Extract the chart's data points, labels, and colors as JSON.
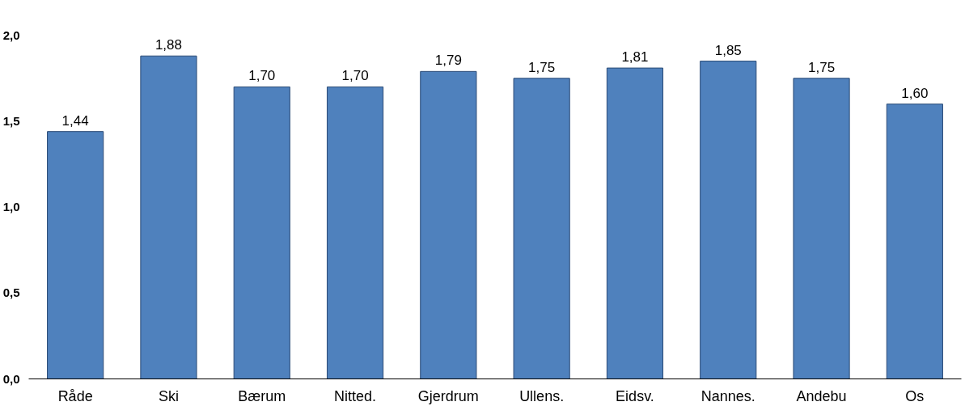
{
  "chart_data": {
    "type": "bar",
    "categories": [
      "Råde",
      "Ski",
      "Bærum",
      "Nitted.",
      "Gjerdrum",
      "Ullens.",
      "Eidsv.",
      "Nannes.",
      "Andebu",
      "Os"
    ],
    "values": [
      1.44,
      1.88,
      1.7,
      1.7,
      1.79,
      1.75,
      1.81,
      1.85,
      1.75,
      1.6
    ],
    "value_labels": [
      "1,44",
      "1,88",
      "1,70",
      "1,70",
      "1,79",
      "1,75",
      "1,81",
      "1,85",
      "1,75",
      "1,60"
    ],
    "color": "#4f81bd",
    "ylim": [
      0,
      2
    ],
    "yticks": [
      {
        "value": 0,
        "label": "0,0"
      },
      {
        "value": 0.5,
        "label": "0,5"
      },
      {
        "value": 1,
        "label": "1,0"
      },
      {
        "value": 1.5,
        "label": "1,5"
      },
      {
        "value": 2,
        "label": "2,0"
      }
    ],
    "grid": false
  }
}
